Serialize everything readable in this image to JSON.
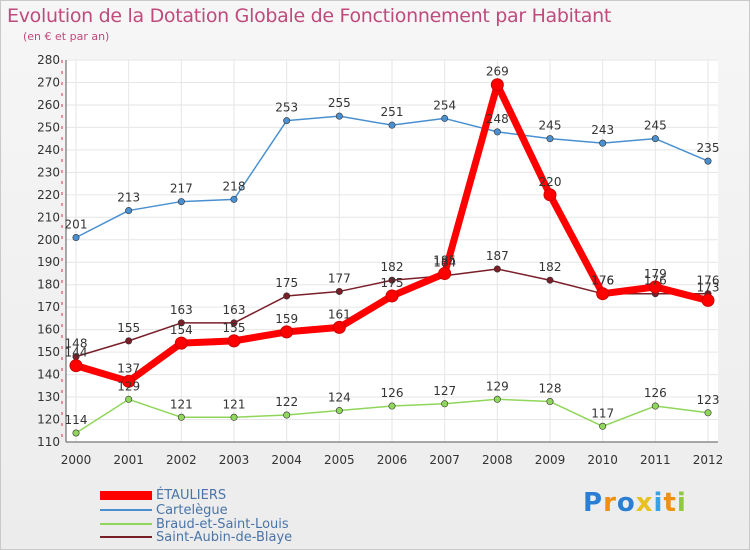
{
  "chart_data": {
    "type": "line",
    "title": "Evolution de la Dotation Globale de Fonctionnement par Habitant",
    "subtitle": "(en € et par an)",
    "xlabel": "",
    "ylabel": "",
    "categories": [
      "2000",
      "2001",
      "2002",
      "2003",
      "2004",
      "2005",
      "2006",
      "2007",
      "2008",
      "2009",
      "2010",
      "2011",
      "2012"
    ],
    "ylim": [
      110,
      280
    ],
    "yticks": [
      110,
      120,
      130,
      140,
      150,
      160,
      170,
      180,
      190,
      200,
      210,
      220,
      230,
      240,
      250,
      260,
      270,
      280
    ],
    "grid": true,
    "legend_position": "bottom-left",
    "series": [
      {
        "name": "ÉTAULIERS",
        "color": "#ff0000",
        "values": [
          144,
          137,
          154,
          155,
          159,
          161,
          175,
          185,
          269,
          220,
          176,
          179,
          173
        ]
      },
      {
        "name": "Cartelègue",
        "color": "#4a90d0",
        "values": [
          201,
          213,
          217,
          218,
          253,
          255,
          251,
          254,
          248,
          245,
          243,
          245,
          235
        ]
      },
      {
        "name": "Braud-et-Saint-Louis",
        "color": "#8fd65a",
        "values": [
          114,
          129,
          121,
          121,
          122,
          124,
          126,
          127,
          129,
          128,
          117,
          126,
          123
        ]
      },
      {
        "name": "Saint-Aubin-de-Blaye",
        "color": "#7a1e28",
        "values": [
          148,
          155,
          163,
          163,
          175,
          177,
          182,
          184,
          187,
          182,
          176,
          176,
          176
        ]
      }
    ]
  },
  "logo": {
    "letters": [
      "P",
      "r",
      "o",
      "x",
      "i",
      "t",
      "i"
    ],
    "colors": [
      "#2a7fd4",
      "#f09010",
      "#2a7fd4",
      "#e8c020",
      "#3aa0e0",
      "#f09010",
      "#90c840"
    ]
  }
}
